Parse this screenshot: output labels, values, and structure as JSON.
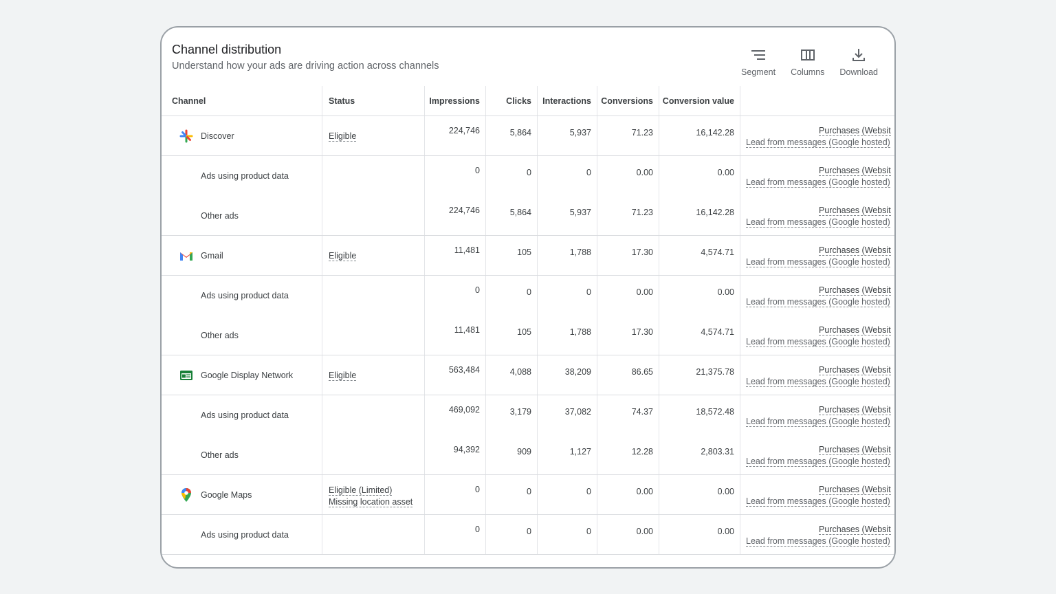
{
  "header": {
    "title": "Channel distribution",
    "subtitle": "Understand how your ads are driving action across channels"
  },
  "toolbar": {
    "segment": "Segment",
    "columns": "Columns",
    "download": "Download"
  },
  "columns": {
    "channel": "Channel",
    "status": "Status",
    "impressions": "Impressions",
    "clicks": "Clicks",
    "interactions": "Interactions",
    "conversions": "Conversions",
    "conversion_value": "Conversion value"
  },
  "action_labels": {
    "purchases": "Purchases (Websit",
    "leads": "Lead from messages (Google hosted)"
  },
  "rows": [
    {
      "channel": "Discover",
      "icon": "discover-icon",
      "status": "Eligible",
      "impressions": "224,746",
      "clicks": "5,864",
      "interactions": "5,937",
      "conversions": "71.23",
      "conversion_value": "16,142.28"
    },
    {
      "channel": "Ads using product data",
      "status": "",
      "impressions": "0",
      "clicks": "0",
      "interactions": "0",
      "conversions": "0.00",
      "conversion_value": "0.00"
    },
    {
      "channel": "Other ads",
      "status": "",
      "impressions": "224,746",
      "clicks": "5,864",
      "interactions": "5,937",
      "conversions": "71.23",
      "conversion_value": "16,142.28"
    },
    {
      "channel": "Gmail",
      "icon": "gmail-icon",
      "status": "Eligible",
      "impressions": "11,481",
      "clicks": "105",
      "interactions": "1,788",
      "conversions": "17.30",
      "conversion_value": "4,574.71"
    },
    {
      "channel": "Ads using product data",
      "status": "",
      "impressions": "0",
      "clicks": "0",
      "interactions": "0",
      "conversions": "0.00",
      "conversion_value": "0.00"
    },
    {
      "channel": "Other ads",
      "status": "",
      "impressions": "11,481",
      "clicks": "105",
      "interactions": "1,788",
      "conversions": "17.30",
      "conversion_value": "4,574.71"
    },
    {
      "channel": "Google Display Network",
      "icon": "display-network-icon",
      "status": "Eligible",
      "impressions": "563,484",
      "clicks": "4,088",
      "interactions": "38,209",
      "conversions": "86.65",
      "conversion_value": "21,375.78"
    },
    {
      "channel": "Ads using product data",
      "status": "",
      "impressions": "469,092",
      "clicks": "3,179",
      "interactions": "37,082",
      "conversions": "74.37",
      "conversion_value": "18,572.48"
    },
    {
      "channel": "Other ads",
      "status": "",
      "impressions": "94,392",
      "clicks": "909",
      "interactions": "1,127",
      "conversions": "12.28",
      "conversion_value": "2,803.31"
    },
    {
      "channel": "Google Maps",
      "icon": "maps-pin-icon",
      "status": "Eligible (Limited)",
      "status2": "Missing location asset",
      "impressions": "0",
      "clicks": "0",
      "interactions": "0",
      "conversions": "0.00",
      "conversion_value": "0.00"
    },
    {
      "channel": "Ads using product data",
      "status": "",
      "impressions": "0",
      "clicks": "0",
      "interactions": "0",
      "conversions": "0.00",
      "conversion_value": "0.00"
    }
  ],
  "colors": {
    "background": "#f1f3f4",
    "card_border": "#9aa0a6",
    "divider": "#dadce0",
    "text": "#3c4043"
  }
}
